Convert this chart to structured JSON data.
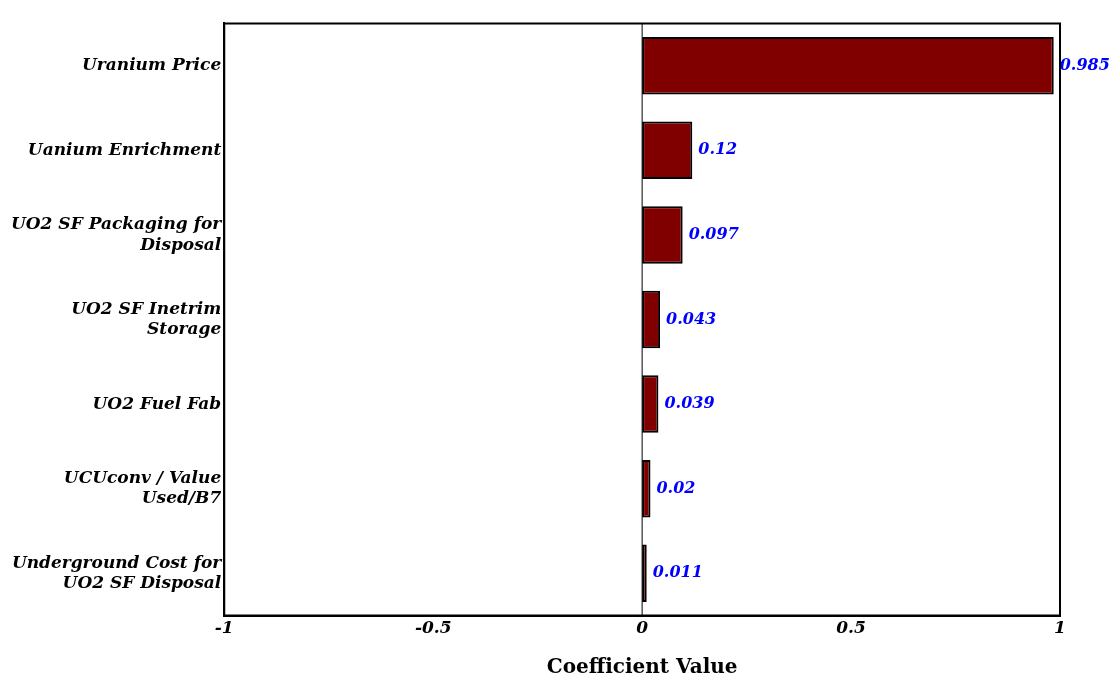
{
  "chart_data": {
    "type": "bar",
    "orientation": "horizontal",
    "xlabel": "Coefficient Value",
    "categories": [
      "Uranium Price",
      "Uanium Enrichment",
      "UO2 SF Packaging for Disposal",
      "UO2 SF Inetrim Storage",
      "UO2 Fuel Fab",
      "UCUconv / Value Used/B7",
      "Underground Cost for UO2 SF Disposal"
    ],
    "values": [
      0.985,
      0.12,
      0.097,
      0.043,
      0.039,
      0.02,
      0.011
    ],
    "color": "#800000",
    "xlim": [
      -1,
      1
    ],
    "xticks": [
      -1,
      -0.5,
      0,
      0.5,
      1
    ],
    "grid": false,
    "legend": false,
    "data_labels": true,
    "ref_lines": [
      {
        "axis": "x",
        "value": 0,
        "color": "#000000"
      }
    ]
  }
}
